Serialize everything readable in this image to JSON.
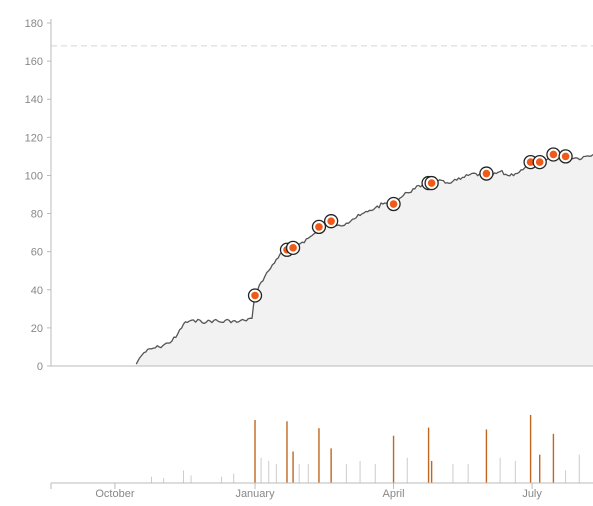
{
  "chart_data": {
    "type": "area",
    "title": "",
    "xlabel": "",
    "ylabel": "",
    "ylim": [
      0,
      180
    ],
    "xlim": [
      "2019-08-20",
      "2020-08-10"
    ],
    "yticks": [
      0,
      20,
      40,
      60,
      80,
      100,
      120,
      140,
      160,
      180
    ],
    "xticks": [
      {
        "date": "2019-10-01",
        "label": "October"
      },
      {
        "date": "2020-01-01",
        "label": "January"
      },
      {
        "date": "2020-04-01",
        "label": "April"
      },
      {
        "date": "2020-07-01",
        "label": "July"
      }
    ],
    "reference_line": 168,
    "grid": false,
    "colors": {
      "line": "#555555",
      "area": "#f2f2f2",
      "marker": "#ee5a17",
      "marker_ring": "#222222",
      "axis": "#bbbbbb",
      "reference": "#d5d5d5",
      "minor_bar": "#cccccc",
      "major_bar": "#c2661f",
      "tick_text": "#888888"
    },
    "series": [
      {
        "x": [
          "2019-10-15",
          "2019-10-17",
          "2019-10-20",
          "2019-10-25",
          "2019-10-30",
          "2019-11-05",
          "2019-11-10",
          "2019-11-15",
          "2019-11-20",
          "2019-11-23",
          "2019-11-26",
          "2019-11-30",
          "2019-12-05",
          "2019-12-10",
          "2019-12-15",
          "2019-12-20",
          "2019-12-25",
          "2019-12-30",
          "2020-01-01",
          "2020-01-05",
          "2020-01-10",
          "2020-01-15",
          "2020-01-20",
          "2020-01-23",
          "2020-01-26",
          "2020-02-01",
          "2020-02-05",
          "2020-02-10",
          "2020-02-15",
          "2020-02-20",
          "2020-02-25",
          "2020-03-01",
          "2020-03-05",
          "2020-03-10",
          "2020-03-15",
          "2020-03-20",
          "2020-03-25",
          "2020-03-30",
          "2020-04-05",
          "2020-04-10",
          "2020-04-15",
          "2020-04-20",
          "2020-04-25",
          "2020-04-30",
          "2020-05-05",
          "2020-05-10",
          "2020-05-15",
          "2020-05-20",
          "2020-05-25",
          "2020-05-30",
          "2020-06-05",
          "2020-06-10",
          "2020-06-15",
          "2020-06-20",
          "2020-06-25",
          "2020-06-30",
          "2020-07-05",
          "2020-07-10",
          "2020-07-15",
          "2020-07-20",
          "2020-07-25",
          "2020-07-31",
          "2020-08-05",
          "2020-08-10"
        ],
        "values": [
          1,
          4,
          7,
          9,
          10,
          12,
          15,
          22,
          24,
          23,
          24,
          23,
          24,
          23,
          24,
          23,
          24,
          25,
          37,
          44,
          50,
          56,
          60,
          62,
          63,
          65,
          67,
          70,
          73,
          75,
          74,
          75,
          77,
          79,
          81,
          83,
          85,
          86,
          88,
          91,
          93,
          95,
          96,
          97,
          96,
          97,
          98,
          100,
          101,
          99,
          100,
          102,
          100,
          101,
          103,
          106,
          107,
          108,
          110,
          111,
          110,
          109,
          110,
          111
        ]
      }
    ],
    "markers": [
      {
        "x": "2020-01-01",
        "y": 37
      },
      {
        "x": "2020-01-22",
        "y": 61
      },
      {
        "x": "2020-01-26",
        "y": 62
      },
      {
        "x": "2020-02-12",
        "y": 73
      },
      {
        "x": "2020-02-20",
        "y": 76
      },
      {
        "x": "2020-04-01",
        "y": 85
      },
      {
        "x": "2020-04-24",
        "y": 96
      },
      {
        "x": "2020-04-26",
        "y": 96
      },
      {
        "x": "2020-06-01",
        "y": 101
      },
      {
        "x": "2020-06-30",
        "y": 107
      },
      {
        "x": "2020-07-06",
        "y": 107
      },
      {
        "x": "2020-07-15",
        "y": 111
      },
      {
        "x": "2020-07-23",
        "y": 110
      }
    ],
    "event_bars": [
      {
        "x": "2019-10-25",
        "value": 0.1,
        "major": false
      },
      {
        "x": "2019-11-02",
        "value": 0.08,
        "major": false
      },
      {
        "x": "2019-11-15",
        "value": 0.2,
        "major": false
      },
      {
        "x": "2019-11-20",
        "value": 0.12,
        "major": false
      },
      {
        "x": "2019-12-10",
        "value": 0.1,
        "major": false
      },
      {
        "x": "2019-12-18",
        "value": 0.15,
        "major": false
      },
      {
        "x": "2020-01-01",
        "value": 1.0,
        "major": true
      },
      {
        "x": "2020-01-05",
        "value": 0.4,
        "major": false
      },
      {
        "x": "2020-01-10",
        "value": 0.35,
        "major": false
      },
      {
        "x": "2020-01-15",
        "value": 0.3,
        "major": false
      },
      {
        "x": "2020-01-22",
        "value": 0.98,
        "major": true
      },
      {
        "x": "2020-01-26",
        "value": 0.5,
        "major": true
      },
      {
        "x": "2020-01-30",
        "value": 0.3,
        "major": false
      },
      {
        "x": "2020-02-05",
        "value": 0.3,
        "major": false
      },
      {
        "x": "2020-02-12",
        "value": 0.87,
        "major": true
      },
      {
        "x": "2020-02-20",
        "value": 0.55,
        "major": true
      },
      {
        "x": "2020-03-01",
        "value": 0.3,
        "major": false
      },
      {
        "x": "2020-03-10",
        "value": 0.35,
        "major": false
      },
      {
        "x": "2020-03-20",
        "value": 0.3,
        "major": false
      },
      {
        "x": "2020-04-01",
        "value": 0.75,
        "major": true
      },
      {
        "x": "2020-04-10",
        "value": 0.4,
        "major": false
      },
      {
        "x": "2020-04-24",
        "value": 0.88,
        "major": true
      },
      {
        "x": "2020-04-26",
        "value": 0.35,
        "major": true
      },
      {
        "x": "2020-05-10",
        "value": 0.3,
        "major": false
      },
      {
        "x": "2020-05-20",
        "value": 0.3,
        "major": false
      },
      {
        "x": "2020-06-01",
        "value": 0.85,
        "major": true
      },
      {
        "x": "2020-06-10",
        "value": 0.4,
        "major": false
      },
      {
        "x": "2020-06-20",
        "value": 0.35,
        "major": false
      },
      {
        "x": "2020-06-30",
        "value": 1.08,
        "major": true
      },
      {
        "x": "2020-07-06",
        "value": 0.45,
        "major": true
      },
      {
        "x": "2020-07-15",
        "value": 0.78,
        "major": true
      },
      {
        "x": "2020-07-23",
        "value": 0.2,
        "major": false
      },
      {
        "x": "2020-08-01",
        "value": 0.45,
        "major": false
      }
    ]
  }
}
